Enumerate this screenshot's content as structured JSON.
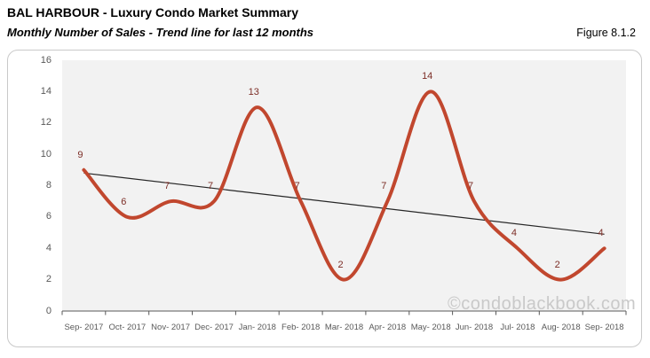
{
  "header": {
    "title": "BAL HARBOUR - Luxury Condo Market Summary",
    "subtitle": "Monthly Number of Sales - Trend line for last 12 months",
    "figure_label": "Figure 8.1.2"
  },
  "watermark": "©condoblackbook.com",
  "colors": {
    "line": "#c1472e",
    "data_label": "#7c2d26",
    "trend_line": "#262626",
    "plot_bg": "#f2f2f2",
    "axis_text": "#595959",
    "axis_line": "#595959",
    "box_border": "#c9c9c9",
    "watermark": "#c9c9c9"
  },
  "chart_data": {
    "type": "line",
    "title": "Monthly Number of Sales - Trend line for last 12 months",
    "categories": [
      "Sep- 2017",
      "Oct- 2017",
      "Nov- 2017",
      "Dec- 2017",
      "Jan- 2018",
      "Feb- 2018",
      "Mar- 2018",
      "Apr- 2018",
      "May- 2018",
      "Jun- 2018",
      "Jul- 2018",
      "Aug- 2018",
      "Sep- 2018"
    ],
    "series": [
      {
        "name": "Monthly Number of Sales",
        "values": [
          9,
          6,
          7,
          7,
          13,
          7,
          2,
          7,
          14,
          7,
          4,
          2,
          4
        ],
        "smooth": true,
        "data_labels": "above"
      },
      {
        "name": "Trend line",
        "type": "linear-trend",
        "start": 8.8,
        "end": 4.9
      }
    ],
    "xlabel": "",
    "ylabel": "",
    "ylim": [
      0,
      16
    ],
    "ytick_step": 2,
    "grid": false,
    "legend": "none"
  }
}
